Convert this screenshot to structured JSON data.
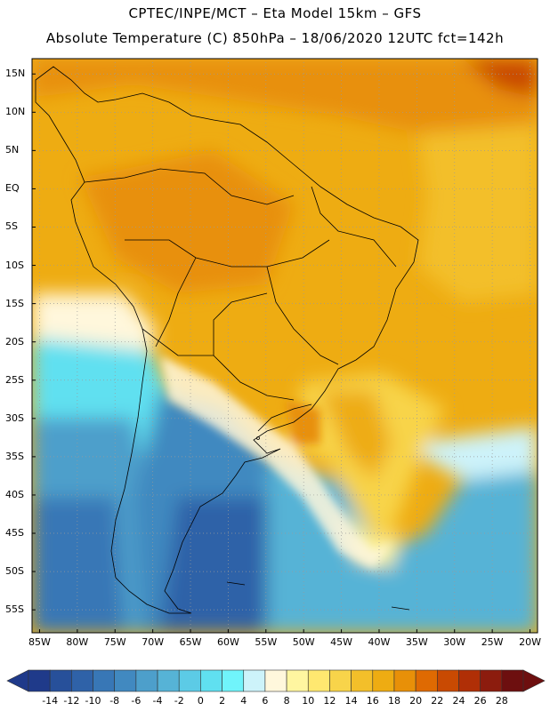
{
  "header": {
    "line1": "CPTEC/INPE/MCT –  Eta Model 15km – GFS",
    "line2": "Absolute Temperature (C) 850hPa – 18/06/2020 12UTC fct=142h"
  },
  "lat_ticks": [
    {
      "label": "15N",
      "value": 15
    },
    {
      "label": "10N",
      "value": 10
    },
    {
      "label": "5N",
      "value": 5
    },
    {
      "label": "EQ",
      "value": 0
    },
    {
      "label": "5S",
      "value": -5
    },
    {
      "label": "10S",
      "value": -10
    },
    {
      "label": "15S",
      "value": -15
    },
    {
      "label": "20S",
      "value": -20
    },
    {
      "label": "25S",
      "value": -25
    },
    {
      "label": "30S",
      "value": -30
    },
    {
      "label": "35S",
      "value": -35
    },
    {
      "label": "40S",
      "value": -40
    },
    {
      "label": "45S",
      "value": -45
    },
    {
      "label": "50S",
      "value": -50
    },
    {
      "label": "55S",
      "value": -55
    }
  ],
  "lon_ticks": [
    {
      "label": "85W",
      "value": -85
    },
    {
      "label": "80W",
      "value": -80
    },
    {
      "label": "75W",
      "value": -75
    },
    {
      "label": "70W",
      "value": -70
    },
    {
      "label": "65W",
      "value": -65
    },
    {
      "label": "60W",
      "value": -60
    },
    {
      "label": "55W",
      "value": -55
    },
    {
      "label": "50W",
      "value": -50
    },
    {
      "label": "45W",
      "value": -45
    },
    {
      "label": "40W",
      "value": -40
    },
    {
      "label": "35W",
      "value": -35
    },
    {
      "label": "30W",
      "value": -30
    },
    {
      "label": "25W",
      "value": -25
    },
    {
      "label": "20W",
      "value": -20
    }
  ],
  "colorbar": {
    "labels": [
      "-14",
      "-12",
      "-10",
      "-8",
      "-6",
      "-4",
      "-2",
      "0",
      "2",
      "4",
      "6",
      "8",
      "10",
      "12",
      "14",
      "16",
      "18",
      "20",
      "22",
      "24",
      "26",
      "28"
    ],
    "colors": [
      "#1f3a8a",
      "#27509a",
      "#2f62a8",
      "#3877b6",
      "#4189c0",
      "#4d9fcb",
      "#56b3d6",
      "#5ccbe6",
      "#60e0f0",
      "#70f4fb",
      "#cdf3fa",
      "#fff7dc",
      "#fff6a0",
      "#ffe870",
      "#f8d44a",
      "#f3bf2a",
      "#eeac12",
      "#e89008",
      "#df6a02",
      "#c94a02",
      "#b02f06",
      "#8c1c0e",
      "#6d0f0f"
    ]
  },
  "chart_data": {
    "type": "heatmap",
    "title": "Absolute Temperature (C) 850hPa – 18/06/2020 12UTC fct=142h",
    "source": "CPTEC/INPE/MCT – Eta Model 15km – GFS",
    "variable_units": "°C",
    "lon_range": [
      -86,
      -19
    ],
    "lat_range": [
      -58,
      17
    ],
    "scale_range": [
      -14,
      28
    ],
    "scale_step": 2,
    "regions": [
      {
        "area": "Caribbean / northern South America",
        "approx_temp_c": 18
      },
      {
        "area": "Far northeast corner",
        "approx_temp_c": 22
      },
      {
        "area": "Amazon / central Brazil",
        "approx_temp_c": 18
      },
      {
        "area": "Atlantic off northeast Brazil",
        "approx_temp_c": 16
      },
      {
        "area": "Pacific off Peru",
        "approx_temp_c": 16
      },
      {
        "area": "Pacific off northern Chile",
        "approx_temp_c": 4
      },
      {
        "area": "Southern Brazil / Uruguay",
        "approx_temp_c": 16
      },
      {
        "area": "Central Argentina",
        "approx_temp_c": 6
      },
      {
        "area": "Southern Chile / Patagonia",
        "approx_temp_c": -4
      },
      {
        "area": "Southwest Atlantic tongue",
        "approx_temp_c": 10
      }
    ]
  }
}
